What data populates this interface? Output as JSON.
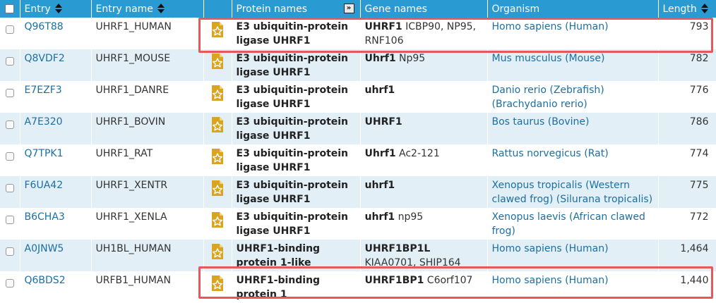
{
  "columns": {
    "entry": "Entry",
    "entry_name": "Entry name",
    "protein_names": "Protein names",
    "gene_names": "Gene names",
    "organism": "Organism",
    "length": "Length"
  },
  "rows": [
    {
      "entry": "Q96T88",
      "entry_name": "UHRF1_HUMAN",
      "protein": "E3 ubiquitin-protein ligase UHRF1",
      "gene_primary": "UHRF1",
      "gene_other": " ICBP90, NP95, RNF106",
      "organism": "Homo sapiens (Human)",
      "length": "793"
    },
    {
      "entry": "Q8VDF2",
      "entry_name": "UHRF1_MOUSE",
      "protein": "E3 ubiquitin-protein ligase UHRF1",
      "gene_primary": "Uhrf1",
      "gene_other": " Np95",
      "organism": "Mus musculus (Mouse)",
      "length": "782"
    },
    {
      "entry": "E7EZF3",
      "entry_name": "UHRF1_DANRE",
      "protein": "E3 ubiquitin-protein ligase UHRF1",
      "gene_primary": "uhrf1",
      "gene_other": "",
      "organism": "Danio rerio (Zebrafish) (Brachydanio rerio)",
      "length": "776"
    },
    {
      "entry": "A7E320",
      "entry_name": "UHRF1_BOVIN",
      "protein": "E3 ubiquitin-protein ligase UHRF1",
      "gene_primary": "UHRF1",
      "gene_other": "",
      "organism": "Bos taurus (Bovine)",
      "length": "786"
    },
    {
      "entry": "Q7TPK1",
      "entry_name": "UHRF1_RAT",
      "protein": "E3 ubiquitin-protein ligase UHRF1",
      "gene_primary": "Uhrf1",
      "gene_other": " Ac2-121",
      "organism": "Rattus norvegicus (Rat)",
      "length": "774"
    },
    {
      "entry": "F6UA42",
      "entry_name": "UHRF1_XENTR",
      "protein": "E3 ubiquitin-protein ligase UHRF1",
      "gene_primary": "uhrf1",
      "gene_other": "",
      "organism": "Xenopus tropicalis (Western clawed frog) (Silurana tropicalis)",
      "length": "775"
    },
    {
      "entry": "B6CHA3",
      "entry_name": "UHRF1_XENLA",
      "protein": "E3 ubiquitin-protein ligase UHRF1",
      "gene_primary": "uhrf1",
      "gene_other": " np95",
      "organism": "Xenopus laevis (African clawed frog)",
      "length": "772"
    },
    {
      "entry": "A0JNW5",
      "entry_name": "UH1BL_HUMAN",
      "protein": "UHRF1-binding protein 1-like",
      "gene_primary": "UHRF1BP1L",
      "gene_other": " KIAA0701, SHIP164",
      "organism": "Homo sapiens (Human)",
      "length": "1,464"
    },
    {
      "entry": "Q6BDS2",
      "entry_name": "URFB1_HUMAN",
      "protein": "UHRF1-binding protein 1",
      "gene_primary": "UHRF1BP1",
      "gene_other": " C6orf107",
      "organism": "Homo sapiens (Human)",
      "length": "1,440"
    }
  ],
  "colors": {
    "header_bg": "#2a9ad3",
    "row_alt_bg": "#e2eff7",
    "link": "#1b6fa3",
    "highlight": "#e8585b",
    "reviewed_icon": "#d9a520"
  }
}
